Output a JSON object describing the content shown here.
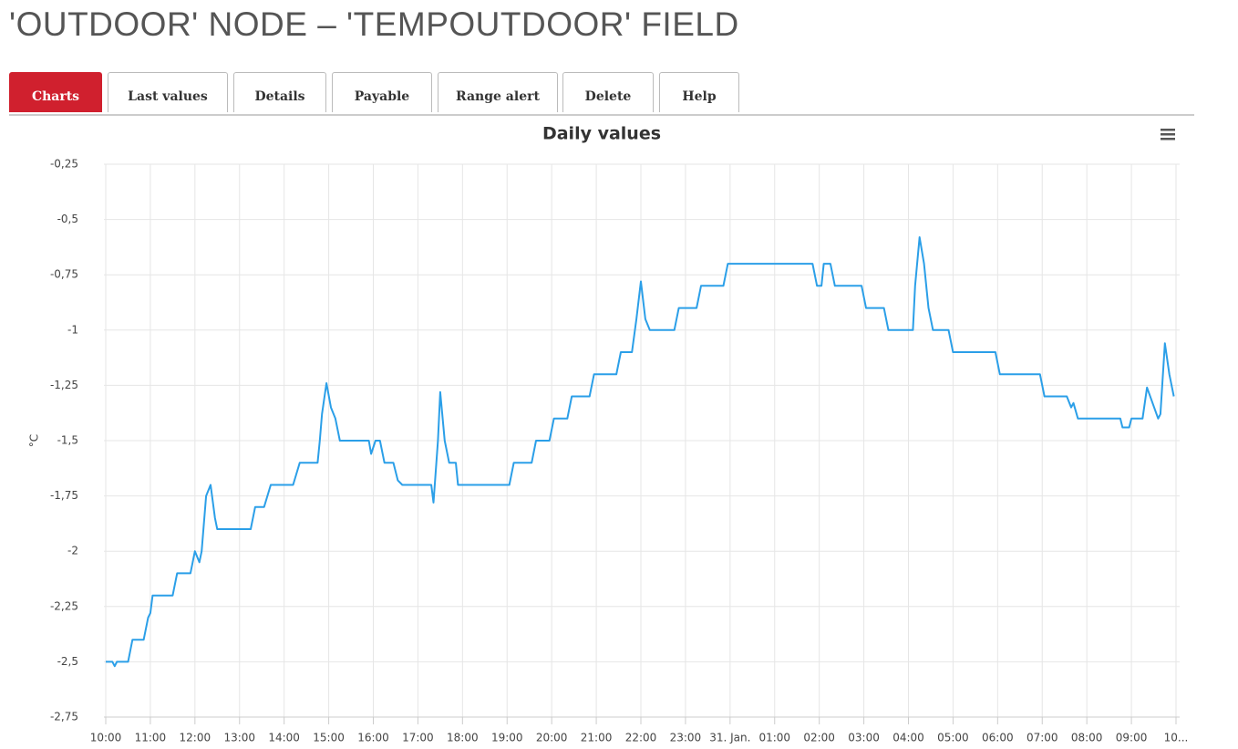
{
  "header": {
    "title": "'OUTDOOR' NODE – 'TEMPOUTDOOR' FIELD"
  },
  "tabs": [
    "Charts",
    "Last values",
    "Details",
    "Payable",
    "Range alert",
    "Delete",
    "Help"
  ],
  "chart_data": {
    "type": "line",
    "title": "Daily values",
    "y_label": "°C",
    "xlim": [
      0,
      24
    ],
    "xticks": [
      {
        "value": 0,
        "label": "10:00"
      },
      {
        "value": 1,
        "label": "11:00"
      },
      {
        "value": 2,
        "label": "12:00"
      },
      {
        "value": 3,
        "label": "13:00"
      },
      {
        "value": 4,
        "label": "14:00"
      },
      {
        "value": 5,
        "label": "15:00"
      },
      {
        "value": 6,
        "label": "16:00"
      },
      {
        "value": 7,
        "label": "17:00"
      },
      {
        "value": 8,
        "label": "18:00"
      },
      {
        "value": 9,
        "label": "19:00"
      },
      {
        "value": 10,
        "label": "20:00"
      },
      {
        "value": 11,
        "label": "21:00"
      },
      {
        "value": 12,
        "label": "22:00"
      },
      {
        "value": 13,
        "label": "23:00"
      },
      {
        "value": 14,
        "label": "31. Jan."
      },
      {
        "value": 15,
        "label": "01:00"
      },
      {
        "value": 16,
        "label": "02:00"
      },
      {
        "value": 17,
        "label": "03:00"
      },
      {
        "value": 18,
        "label": "04:00"
      },
      {
        "value": 19,
        "label": "05:00"
      },
      {
        "value": 20,
        "label": "06:00"
      },
      {
        "value": 21,
        "label": "07:00"
      },
      {
        "value": 22,
        "label": "08:00"
      },
      {
        "value": 23,
        "label": "09:00"
      },
      {
        "value": 24,
        "label": "10..."
      }
    ],
    "ylim": [
      -2.75,
      -0.25
    ],
    "yticks": [
      {
        "value": -0.25,
        "label": "-0,25"
      },
      {
        "value": -0.5,
        "label": "-0,5"
      },
      {
        "value": -0.75,
        "label": "-0,75"
      },
      -1,
      {
        "value": -1.25,
        "label": "-1,25"
      },
      {
        "value": -1.5,
        "label": "-1,5"
      },
      {
        "value": -1.75,
        "label": "-1,75"
      },
      -2,
      {
        "value": -2.25,
        "label": "-2,25"
      },
      {
        "value": -2.5,
        "label": "-2,5"
      },
      {
        "value": -2.75,
        "label": "-2,75"
      }
    ],
    "grid": true,
    "x": [
      0,
      0.15,
      0.2,
      0.25,
      0.5,
      0.6,
      0.85,
      0.95,
      1.0,
      1.05,
      1.5,
      1.6,
      1.9,
      2.0,
      2.1,
      2.15,
      2.25,
      2.35,
      2.45,
      2.5,
      3.25,
      3.35,
      3.55,
      3.7,
      4.2,
      4.35,
      4.75,
      4.8,
      4.85,
      4.95,
      5.05,
      5.15,
      5.25,
      5.9,
      5.95,
      6.05,
      6.15,
      6.25,
      6.45,
      6.55,
      6.65,
      7.3,
      7.35,
      7.45,
      7.5,
      7.6,
      7.7,
      7.85,
      7.9,
      9.05,
      9.15,
      9.55,
      9.65,
      9.95,
      10.05,
      10.35,
      10.45,
      10.85,
      10.95,
      11.45,
      11.55,
      11.8,
      11.9,
      12.0,
      12.1,
      12.2,
      12.75,
      12.85,
      13.25,
      13.35,
      13.85,
      13.95,
      15.85,
      15.95,
      16.05,
      16.1,
      16.25,
      16.35,
      16.95,
      17.05,
      17.45,
      17.55,
      18.1,
      18.15,
      18.25,
      18.35,
      18.45,
      18.55,
      18.9,
      19.0,
      19.95,
      20.05,
      20.95,
      21.05,
      21.55,
      21.65,
      21.7,
      21.8,
      22.75,
      22.8,
      22.95,
      23.0,
      23.25,
      23.35,
      23.6,
      23.65,
      23.75,
      23.85,
      23.95
    ],
    "series": [
      {
        "color": "#2b9fe8",
        "values": [
          -2.5,
          -2.5,
          -2.52,
          -2.5,
          -2.5,
          -2.4,
          -2.4,
          -2.3,
          -2.28,
          -2.2,
          -2.2,
          -2.1,
          -2.1,
          -2.0,
          -2.05,
          -2.0,
          -1.75,
          -1.7,
          -1.85,
          -1.9,
          -1.9,
          -1.8,
          -1.8,
          -1.7,
          -1.7,
          -1.6,
          -1.6,
          -1.5,
          -1.38,
          -1.24,
          -1.35,
          -1.4,
          -1.5,
          -1.5,
          -1.56,
          -1.5,
          -1.5,
          -1.6,
          -1.6,
          -1.68,
          -1.7,
          -1.7,
          -1.78,
          -1.5,
          -1.28,
          -1.5,
          -1.6,
          -1.6,
          -1.7,
          -1.7,
          -1.6,
          -1.6,
          -1.5,
          -1.5,
          -1.4,
          -1.4,
          -1.3,
          -1.3,
          -1.2,
          -1.2,
          -1.1,
          -1.1,
          -0.95,
          -0.78,
          -0.95,
          -1.0,
          -1.0,
          -0.9,
          -0.9,
          -0.8,
          -0.8,
          -0.7,
          -0.7,
          -0.8,
          -0.8,
          -0.7,
          -0.7,
          -0.8,
          -0.8,
          -0.9,
          -0.9,
          -1.0,
          -1.0,
          -0.8,
          -0.58,
          -0.7,
          -0.9,
          -1.0,
          -1.0,
          -1.1,
          -1.1,
          -1.2,
          -1.2,
          -1.3,
          -1.3,
          -1.35,
          -1.33,
          -1.4,
          -1.4,
          -1.44,
          -1.44,
          -1.4,
          -1.4,
          -1.26,
          -1.4,
          -1.38,
          -1.06,
          -1.2,
          -1.3
        ]
      }
    ]
  }
}
